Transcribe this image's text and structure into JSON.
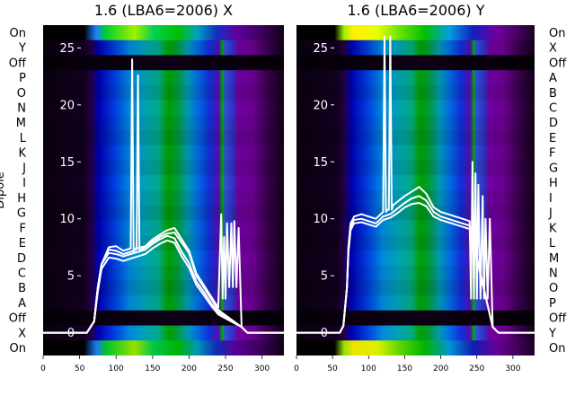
{
  "chart_data": [
    {
      "type": "heatmap",
      "title": "1.6 (LBA6=2006) X",
      "ylabel": "Dipole",
      "xlim": [
        0,
        330
      ],
      "x_ticks": [
        0,
        50,
        100,
        150,
        200,
        250,
        300
      ],
      "ylim": [
        -2,
        27
      ],
      "y_ticks": [
        0,
        5,
        10,
        15,
        20,
        25
      ],
      "dipole_rows": [
        "On",
        "Y",
        "Off",
        "P",
        "O",
        "N",
        "M",
        "L",
        "K",
        "J",
        "I",
        "H",
        "G",
        "F",
        "E",
        "D",
        "C",
        "B",
        "A",
        "Off",
        "X",
        "On"
      ],
      "colormap": "nipy_spectral",
      "line_color": "#ffffff",
      "series": [
        {
          "x": [
            0,
            60,
            70,
            75,
            80,
            90,
            100,
            110,
            120,
            122,
            124,
            126,
            128,
            140,
            150,
            160,
            170,
            180,
            190,
            200,
            210,
            220,
            230,
            240,
            244,
            246,
            248,
            250,
            252,
            255,
            258,
            260,
            262,
            265,
            268,
            272,
            280,
            330
          ],
          "y": [
            0,
            0,
            1,
            4,
            6,
            7.5,
            7.6,
            7.2,
            7.4,
            24,
            7,
            7.4,
            7.4,
            7.6,
            8.2,
            8.6,
            9,
            9.2,
            8.2,
            7.2,
            5.2,
            4.2,
            3.2,
            2.2,
            10.4,
            3,
            8.4,
            3,
            9.6,
            4,
            9.6,
            4,
            9.8,
            4,
            9.2,
            0.5,
            0,
            0
          ]
        },
        {
          "x": [
            0,
            60,
            70,
            75,
            80,
            90,
            100,
            110,
            120,
            128,
            130,
            132,
            134,
            140,
            150,
            160,
            170,
            180,
            190,
            200,
            210,
            220,
            230,
            240,
            272,
            280,
            330
          ],
          "y": [
            0,
            0,
            1,
            4,
            6,
            7.3,
            7.2,
            6.9,
            7.1,
            7.3,
            22.6,
            7.3,
            7.3,
            7.5,
            8,
            8.4,
            8.7,
            8.8,
            7.9,
            7,
            5,
            4,
            3,
            2,
            0.5,
            0,
            0
          ]
        },
        {
          "x": [
            0,
            60,
            70,
            75,
            80,
            90,
            100,
            110,
            120,
            130,
            140,
            150,
            160,
            170,
            180,
            190,
            200,
            210,
            220,
            230,
            240,
            272,
            280,
            330
          ],
          "y": [
            0,
            0,
            1,
            4,
            6,
            7,
            6.9,
            6.7,
            6.9,
            7.1,
            7.3,
            7.8,
            8.2,
            8.5,
            8.3,
            7.1,
            6.1,
            4.5,
            3.6,
            2.6,
            1.8,
            0.5,
            0,
            0
          ]
        },
        {
          "x": [
            0,
            60,
            70,
            75,
            80,
            90,
            100,
            110,
            120,
            130,
            140,
            150,
            160,
            170,
            180,
            190,
            200,
            210,
            220,
            230,
            240,
            272,
            280,
            330
          ],
          "y": [
            0,
            0,
            1,
            3.6,
            5.6,
            6.6,
            6.5,
            6.3,
            6.5,
            6.7,
            6.9,
            7.4,
            7.8,
            8.1,
            7.9,
            6.7,
            5.7,
            4.2,
            3.3,
            2.4,
            1.6,
            0.5,
            0,
            0
          ]
        }
      ]
    },
    {
      "type": "heatmap",
      "title": "1.6 (LBA6=2006) Y",
      "ylabel": "",
      "xlim": [
        0,
        330
      ],
      "x_ticks": [
        0,
        50,
        100,
        150,
        200,
        250,
        300
      ],
      "ylim": [
        -2,
        27
      ],
      "y_ticks": [
        0,
        5,
        10,
        15,
        20,
        25
      ],
      "dipole_rows": [
        "On",
        "X",
        "Off",
        "A",
        "B",
        "C",
        "D",
        "E",
        "F",
        "G",
        "H",
        "I",
        "J",
        "K",
        "L",
        "M",
        "N",
        "O",
        "P",
        "Off",
        "Y",
        "On"
      ],
      "colormap": "nipy_spectral",
      "line_color": "#ffffff",
      "series": [
        {
          "x": [
            0,
            60,
            65,
            70,
            72,
            75,
            80,
            90,
            100,
            110,
            120,
            122,
            124,
            126,
            128,
            130,
            132,
            134,
            140,
            150,
            160,
            170,
            180,
            190,
            200,
            210,
            220,
            230,
            240,
            242,
            244,
            246,
            248,
            250,
            252,
            255,
            258,
            260,
            262,
            265,
            268,
            272,
            280,
            330
          ],
          "y": [
            0,
            0,
            0.6,
            4,
            7.5,
            9.6,
            10.2,
            10.4,
            10.2,
            10,
            10.6,
            26,
            10.6,
            10.8,
            10.8,
            26,
            10.8,
            11.2,
            11.5,
            12,
            12.4,
            12.8,
            12.2,
            11,
            10.6,
            10.4,
            10.2,
            10,
            9.8,
            3,
            15,
            3,
            14,
            3,
            13,
            3,
            12,
            3,
            10,
            3,
            10,
            0.5,
            0,
            0
          ]
        },
        {
          "x": [
            0,
            60,
            65,
            70,
            72,
            75,
            80,
            90,
            100,
            110,
            120,
            130,
            140,
            150,
            160,
            170,
            180,
            190,
            200,
            210,
            220,
            230,
            240,
            272,
            280,
            330
          ],
          "y": [
            0,
            0,
            0.6,
            4,
            7.3,
            9.3,
            9.9,
            10,
            9.8,
            9.6,
            10.2,
            10.4,
            10.9,
            11.4,
            11.8,
            12,
            11.6,
            10.6,
            10.2,
            10,
            9.8,
            9.6,
            9.4,
            0.5,
            0,
            0
          ]
        },
        {
          "x": [
            0,
            60,
            65,
            70,
            72,
            75,
            80,
            90,
            100,
            110,
            120,
            130,
            140,
            150,
            160,
            170,
            180,
            190,
            200,
            210,
            220,
            230,
            240,
            272,
            280,
            330
          ],
          "y": [
            0,
            0,
            0.6,
            4,
            7,
            9,
            9.6,
            9.7,
            9.5,
            9.3,
            9.9,
            10.1,
            10.5,
            11,
            11.3,
            11.4,
            11.1,
            10.2,
            9.9,
            9.7,
            9.5,
            9.3,
            9.1,
            0.5,
            0,
            0
          ]
        }
      ]
    }
  ]
}
